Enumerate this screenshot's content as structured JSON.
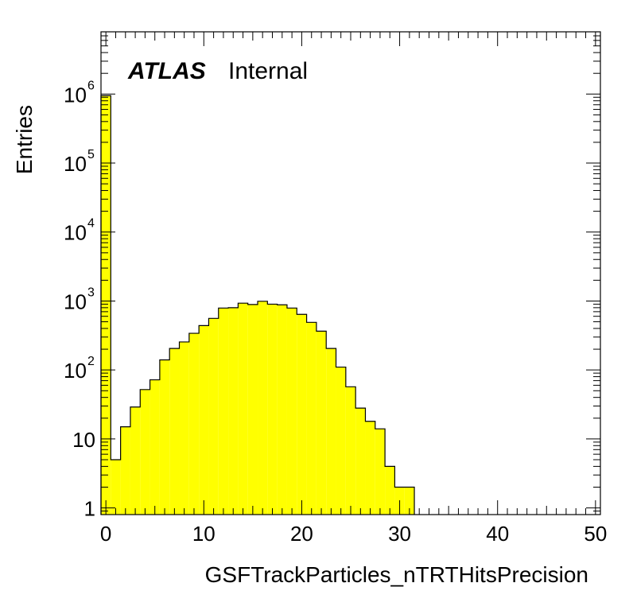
{
  "chart_data": {
    "type": "bar",
    "histogram": true,
    "xlabel": "GSFTrackParticles_nTRTHitsPrecision",
    "ylabel": "Entries",
    "annotation": {
      "brand": "ATLAS",
      "label": "Internal"
    },
    "xlim": [
      -0.5,
      50.5
    ],
    "ylim": [
      0.8,
      8000000
    ],
    "log_y": true,
    "bin_width": 1,
    "x_ticks": [
      {
        "value": 0,
        "label": "0"
      },
      {
        "value": 10,
        "label": "10"
      },
      {
        "value": 20,
        "label": "20"
      },
      {
        "value": 30,
        "label": "30"
      },
      {
        "value": 40,
        "label": "40"
      },
      {
        "value": 50,
        "label": "50"
      }
    ],
    "y_ticks": [
      {
        "value": 1,
        "base": "1",
        "exp": ""
      },
      {
        "value": 10,
        "base": "10",
        "exp": ""
      },
      {
        "value": 100,
        "base": "10",
        "exp": "2"
      },
      {
        "value": 1000,
        "base": "10",
        "exp": "3"
      },
      {
        "value": 10000,
        "base": "10",
        "exp": "4"
      },
      {
        "value": 100000,
        "base": "10",
        "exp": "5"
      },
      {
        "value": 1000000,
        "base": "10",
        "exp": "6"
      }
    ],
    "fill_color": "#ffff00",
    "line_color": "#000000",
    "bins": [
      {
        "x": 0,
        "value": 950000
      },
      {
        "x": 1,
        "value": 5
      },
      {
        "x": 2,
        "value": 15
      },
      {
        "x": 3,
        "value": 29
      },
      {
        "x": 4,
        "value": 52
      },
      {
        "x": 5,
        "value": 72
      },
      {
        "x": 6,
        "value": 140
      },
      {
        "x": 7,
        "value": 205
      },
      {
        "x": 8,
        "value": 255
      },
      {
        "x": 9,
        "value": 340
      },
      {
        "x": 10,
        "value": 440
      },
      {
        "x": 11,
        "value": 560
      },
      {
        "x": 12,
        "value": 790
      },
      {
        "x": 13,
        "value": 800
      },
      {
        "x": 14,
        "value": 930
      },
      {
        "x": 15,
        "value": 890
      },
      {
        "x": 16,
        "value": 990
      },
      {
        "x": 17,
        "value": 900
      },
      {
        "x": 18,
        "value": 880
      },
      {
        "x": 19,
        "value": 790
      },
      {
        "x": 20,
        "value": 640
      },
      {
        "x": 21,
        "value": 490
      },
      {
        "x": 22,
        "value": 365
      },
      {
        "x": 23,
        "value": 205
      },
      {
        "x": 24,
        "value": 110
      },
      {
        "x": 25,
        "value": 57
      },
      {
        "x": 26,
        "value": 28
      },
      {
        "x": 27,
        "value": 18
      },
      {
        "x": 28,
        "value": 14
      },
      {
        "x": 29,
        "value": 4
      },
      {
        "x": 30,
        "value": 2
      },
      {
        "x": 31,
        "value": 2
      }
    ]
  }
}
